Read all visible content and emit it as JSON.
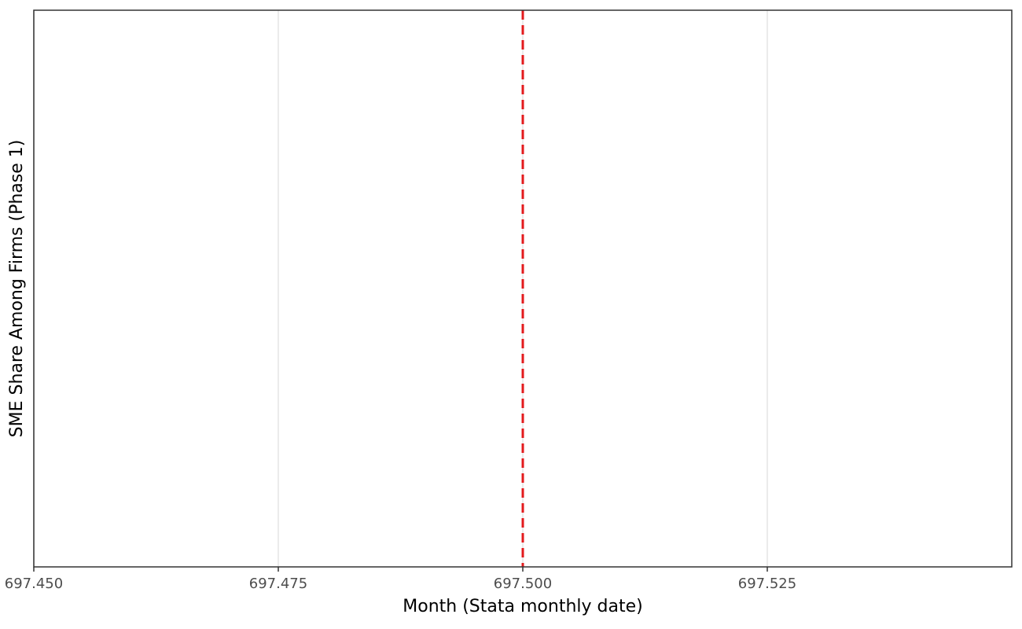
{
  "chart_data": {
    "type": "line",
    "xlabel": "Month (Stata monthly date)",
    "ylabel": "SME Share Among Firms (Phase 1)",
    "xlim": [
      697.45,
      697.55
    ],
    "xticks": [
      {
        "value": 697.45,
        "label": "697.450"
      },
      {
        "value": 697.475,
        "label": "697.475"
      },
      {
        "value": 697.5,
        "label": "697.500"
      },
      {
        "value": 697.525,
        "label": "697.525"
      }
    ],
    "grid": true,
    "vline": {
      "x": 697.5,
      "color": "#e31a1c",
      "style": "dashed"
    }
  }
}
